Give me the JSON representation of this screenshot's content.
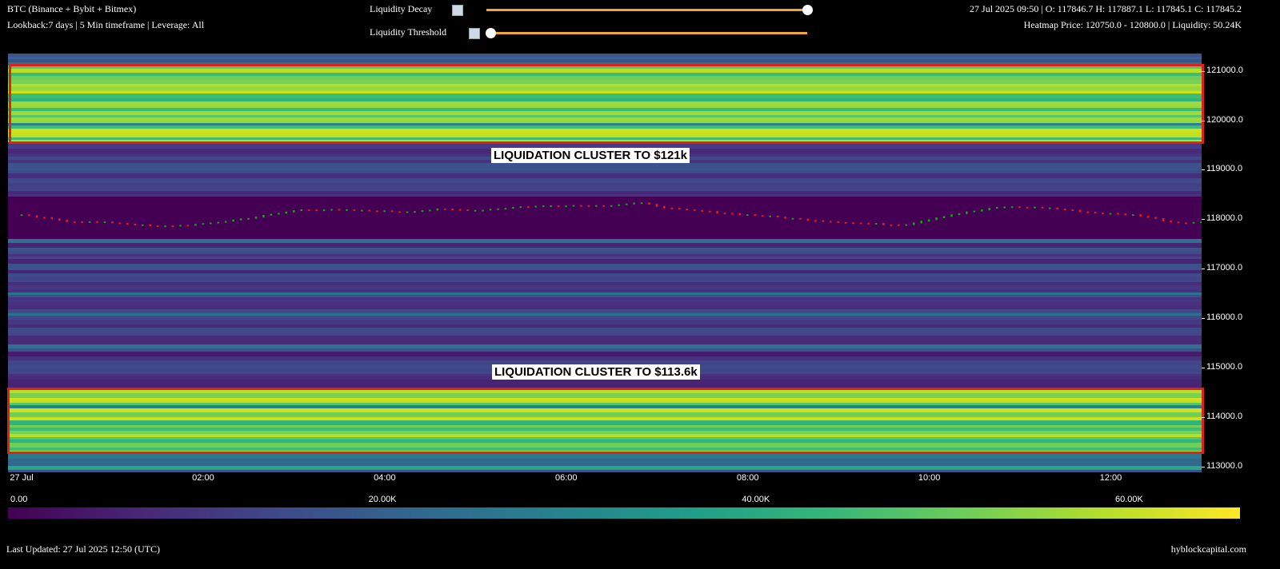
{
  "header": {
    "symbol": "BTC (Binance + Bybit + Bitmex)",
    "settings": "Lookback:7 days | 5 Min timeframe | Leverage: All",
    "ohlc": "27 Jul 2025 09:50 | O: 117846.7 H: 117887.1 L: 117845.1 C: 117845.2",
    "heatmap_info": "Heatmap Price: 120750.0 - 120800.0 | Liquidity: 50.24K"
  },
  "controls": {
    "decay_label": "Liquidity Decay",
    "threshold_label": "Liquidity Threshold",
    "decay_value": 1.0,
    "threshold_value": 0.0
  },
  "annotations": {
    "upper": "LIQUIDATION CLUSTER TO $121k",
    "lower": "LIQUIDATION CLUSTER TO $113.6k"
  },
  "colorbar": {
    "ticks": [
      "0.00",
      "20.00K",
      "40.00K",
      "60.00K"
    ],
    "tick_values": [
      0,
      20000,
      40000,
      60000
    ],
    "max": 66000
  },
  "footer": {
    "updated": "Last Updated: 27 Jul 2025 12:50 (UTC)",
    "brand": "hyblockcapital.com"
  },
  "colors": {
    "up": "#1aa01a",
    "down": "#e01f1f",
    "annotation_border": "#e01f1f",
    "slider": "#f0a43a"
  },
  "chart_data": {
    "type": "heatmap",
    "y_ticks": [
      "121000.0",
      "120000.0",
      "119000.0",
      "118000.0",
      "117000.0",
      "116000.0",
      "115000.0",
      "114000.0",
      "113000.0"
    ],
    "x_ticks": [
      "27 Jul",
      "02:00",
      "04:00",
      "06:00",
      "08:00",
      "10:00",
      "12:00"
    ],
    "ylim": [
      112880,
      121350
    ],
    "xlim_hours": [
      -0.15,
      13.0
    ],
    "x_tick_hours": [
      0,
      2,
      4,
      6,
      8,
      10,
      12
    ],
    "zones": [
      {
        "from": 121100,
        "to": 121350,
        "level": "mid"
      },
      {
        "from": 119550,
        "to": 121100,
        "level": "high"
      },
      {
        "from": 118450,
        "to": 119550,
        "level": "midlow"
      },
      {
        "from": 117600,
        "to": 118450,
        "level": "none"
      },
      {
        "from": 114600,
        "to": 117600,
        "level": "low"
      },
      {
        "from": 113300,
        "to": 114600,
        "level": "high"
      },
      {
        "from": 112880,
        "to": 113300,
        "level": "mid"
      }
    ],
    "price_path": [
      [
        0.0,
        118080
      ],
      [
        0.5,
        117960
      ],
      [
        1.0,
        117930
      ],
      [
        1.5,
        117850
      ],
      [
        2.0,
        117900
      ],
      [
        2.6,
        118050
      ],
      [
        3.1,
        118200
      ],
      [
        3.6,
        118180
      ],
      [
        4.2,
        118150
      ],
      [
        4.6,
        118200
      ],
      [
        5.0,
        118180
      ],
      [
        5.5,
        118250
      ],
      [
        6.0,
        118280
      ],
      [
        6.4,
        118270
      ],
      [
        6.8,
        118330
      ],
      [
        7.2,
        118200
      ],
      [
        7.7,
        118130
      ],
      [
        8.2,
        118060
      ],
      [
        8.7,
        117980
      ],
      [
        9.2,
        117920
      ],
      [
        9.7,
        117880
      ],
      [
        10.2,
        118080
      ],
      [
        10.8,
        118250
      ],
      [
        11.3,
        118230
      ],
      [
        11.8,
        118130
      ],
      [
        12.3,
        118080
      ],
      [
        12.7,
        117930
      ],
      [
        13.0,
        117940
      ]
    ],
    "candle_interval_hours": 0.0833
  }
}
